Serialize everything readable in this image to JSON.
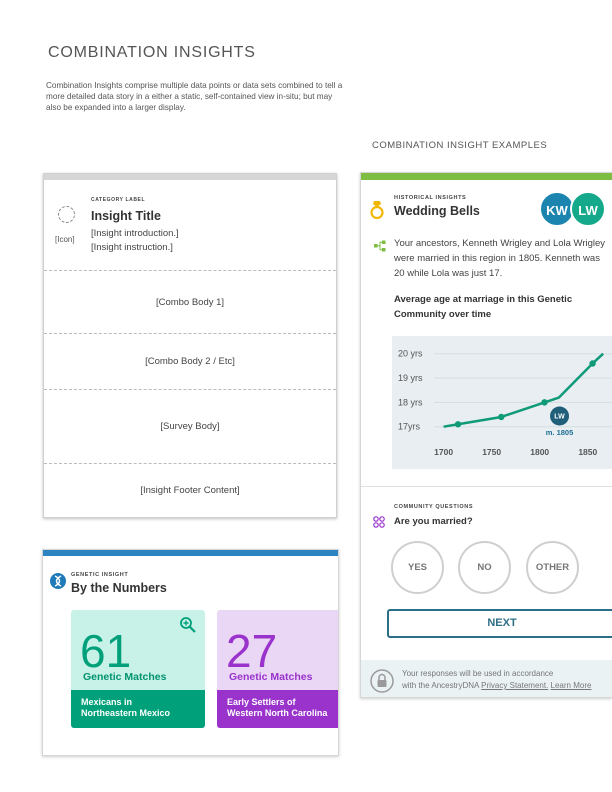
{
  "page": {
    "title": "COMBINATION INSIGHTS",
    "description": "Combination Insights comprise multiple data points or data sets combined to tell a more detailed data story  in a either a static, self-contained view in-situ; but may also be expanded into a larger display.",
    "examples_label": "COMBINATION INSIGHT EXAMPLES"
  },
  "template_card": {
    "icon_label": "[Icon]",
    "category_label": "CATEGORY LABEL",
    "title": "Insight Title",
    "intro": "[Insight introduction.]",
    "instruction": "[Insight instruction.]",
    "sections": [
      "[Combo Body 1]",
      "[Combo Body 2 / Etc]",
      "[Survey Body]",
      "[Insight Footer Content]"
    ]
  },
  "genetic_card": {
    "accent": "#2d84c0",
    "category": "GENETIC INSIGHT",
    "title": "By the Numbers",
    "stats": [
      {
        "number": "61",
        "label": "Genetic Matches",
        "line1": "Mexicans in",
        "line2": "Northeastern Mexico",
        "color": "#00a07a"
      },
      {
        "number": "27",
        "label": "Genetic Matches",
        "line1": "Early Settlers of",
        "line2": "Western North Carolina",
        "color": "#9933cc"
      }
    ]
  },
  "historical_card": {
    "accent": "#7cbd42",
    "category": "HISTORICAL INSIGHTS",
    "title": "Wedding Bells",
    "avatars": [
      "KW",
      "LW"
    ],
    "story": "Your ancestors, Kenneth Wrigley and Lola Wrigley were married in this region in 1805. Kenneth was 20 while Lola was just 17.",
    "chart_title": "Average age at marriage in this Genetic Community over time",
    "marker_initials": "LW",
    "marker_label": "m. 1805",
    "community_category": "COMMUNITY QUESTIONS",
    "question": "Are you married?",
    "answers": [
      "YES",
      "NO",
      "OTHER"
    ],
    "next_label": "NEXT",
    "privacy_line1": "Your responses will be used in accordance",
    "privacy_line2_prefix": "with the AncestryDNA ",
    "privacy_link": "Privacy Statement.",
    "learn_more": "Learn More"
  },
  "chart_data": {
    "type": "line",
    "title": "Average age at marriage in this Genetic Community over time",
    "xlabel": "",
    "ylabel": "",
    "y_tick_labels": [
      "17yrs",
      "18 yrs",
      "19 yrs",
      "20 yrs"
    ],
    "x_tick_labels": [
      "1700",
      "1750",
      "1800",
      "1850"
    ],
    "xlim": [
      1690,
      1870
    ],
    "ylim": [
      16.7,
      20.4
    ],
    "series": [
      {
        "x": [
          1700,
          1715,
          1760,
          1805,
          1820,
          1855,
          1866
        ],
        "y": [
          17.0,
          17.1,
          17.4,
          18.0,
          18.2,
          19.6,
          20.0
        ]
      }
    ],
    "line_color": "#0f9a78",
    "grid": "horizontal"
  }
}
